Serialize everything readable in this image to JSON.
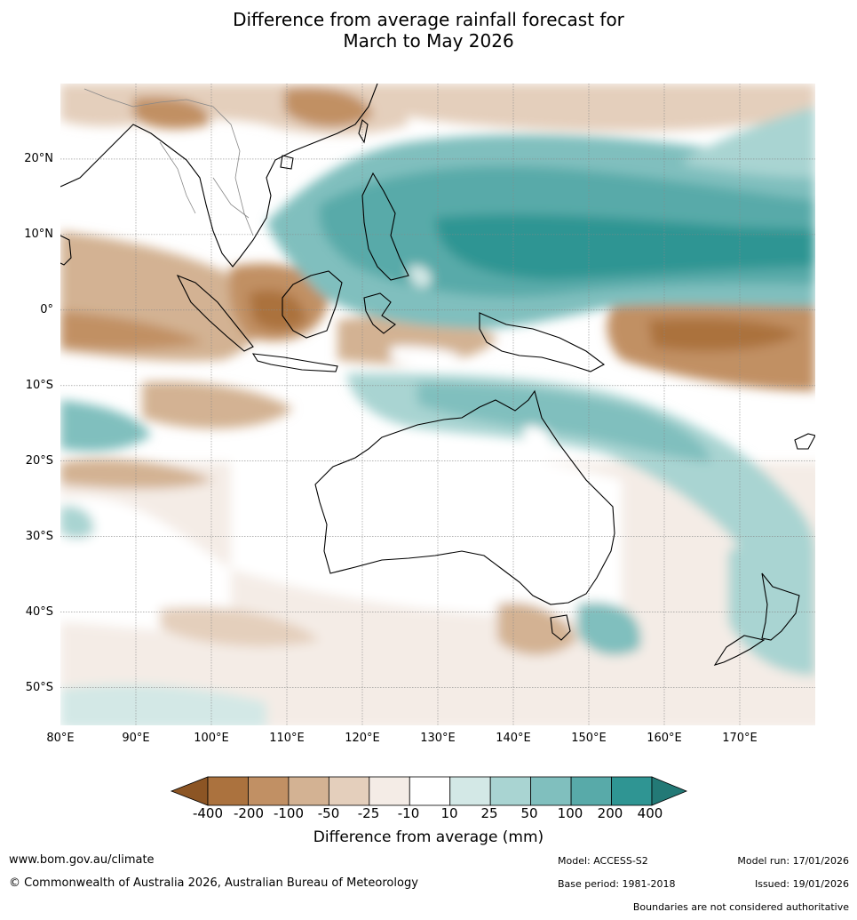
{
  "title": {
    "line1": "Difference from average rainfall forecast for",
    "line2": "March to May 2026"
  },
  "map": {
    "projection": "lat-lon",
    "lon_range_deg": [
      80,
      180
    ],
    "lat_range_deg": [
      -55,
      30
    ],
    "lat_labels": [
      "20°N",
      "10°N",
      "0°",
      "10°S",
      "20°S",
      "30°S",
      "40°S",
      "50°S"
    ],
    "lon_labels": [
      "80°E",
      "90°E",
      "100°E",
      "110°E",
      "120°E",
      "130°E",
      "140°E",
      "150°E",
      "160°E",
      "170°E"
    ]
  },
  "colorbar": {
    "title": "Difference from average (mm)",
    "labels": [
      "-400",
      "-200",
      "-100",
      "-50",
      "-25",
      "-10",
      "10",
      "25",
      "50",
      "100",
      "200",
      "400"
    ],
    "colors": [
      "#8c5524",
      "#ab723e",
      "#c19064",
      "#d3b293",
      "#e4cfbc",
      "#f4ece6",
      "#ffffff",
      "#d3e8e6",
      "#a9d4d2",
      "#80bfbe",
      "#58aaa9",
      "#2f9593",
      "#237976"
    ]
  },
  "footer": {
    "url": "www.bom.gov.au/climate",
    "copyright": "© Commonwealth of Australia 2026, Australian Bureau of Meteorology",
    "model": "Model: ACCESS-S2",
    "base_period": "Base period: 1981-2018",
    "model_run": "Model run: 17/01/2026",
    "issued": "Issued: 19/01/2026",
    "disclaimer": "Boundaries are not considered authoritative"
  }
}
